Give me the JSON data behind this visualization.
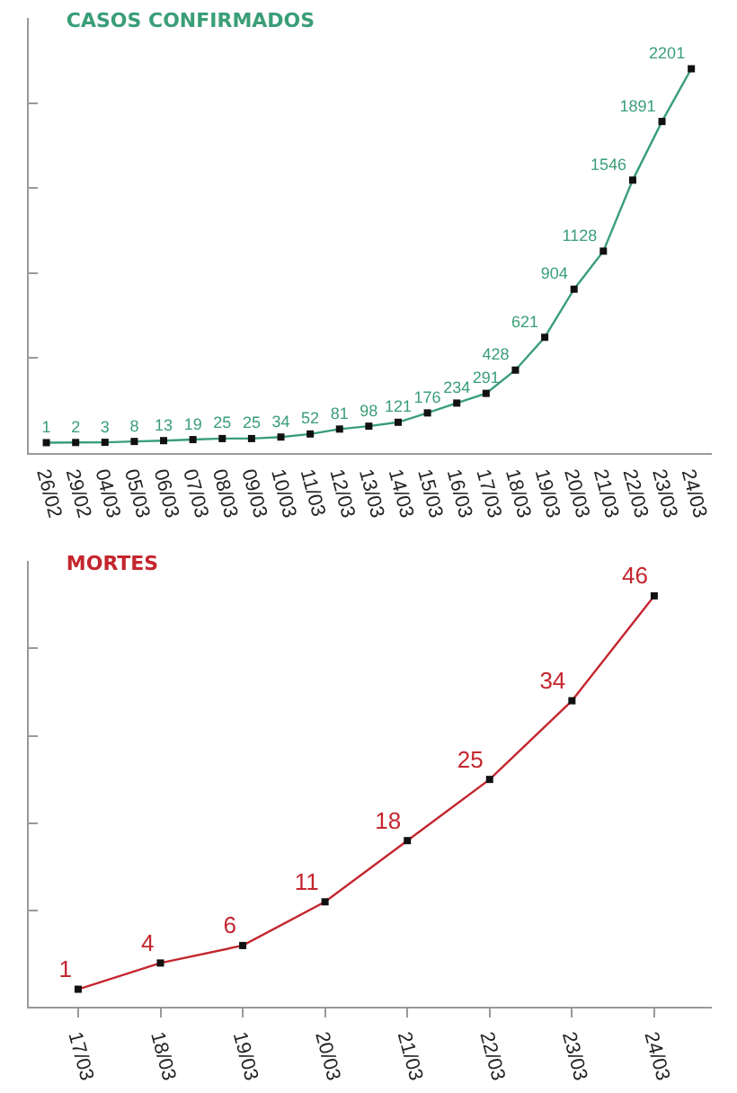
{
  "chart_data": [
    {
      "type": "line",
      "title": "CASOS CONFIRMADOS",
      "categories": [
        "26/02",
        "29/02",
        "04/03",
        "05/03",
        "06/03",
        "07/03",
        "08/03",
        "09/03",
        "10/03",
        "11/03",
        "12/03",
        "13/03",
        "14/03",
        "15/03",
        "16/03",
        "17/03",
        "18/03",
        "19/03",
        "20/03",
        "21/03",
        "22/03",
        "23/03",
        "24/03"
      ],
      "series": [
        {
          "color": "#3a9e78",
          "values": [
            1,
            2,
            3,
            8,
            13,
            19,
            25,
            25,
            34,
            52,
            81,
            98,
            121,
            176,
            234,
            291,
            428,
            621,
            904,
            1128,
            1546,
            1891,
            2201
          ]
        }
      ],
      "ylim": [
        -60,
        2500
      ],
      "yticks": [
        {
          "value": 500,
          "label": null
        },
        {
          "value": 1000,
          "label": null
        },
        {
          "value": 1500,
          "label": null
        },
        {
          "value": 2000,
          "label": null
        }
      ],
      "tick_labels": "x",
      "data_labels": true,
      "marker": "square",
      "grid": false
    },
    {
      "type": "line",
      "title": "MORTES",
      "categories": [
        "17/03",
        "18/03",
        "19/03",
        "20/03",
        "21/03",
        "22/03",
        "23/03",
        "24/03"
      ],
      "series": [
        {
          "color": "#c4262e",
          "values": [
            1,
            4,
            6,
            11,
            18,
            25,
            34,
            46
          ]
        }
      ],
      "ylim": [
        -1,
        50
      ],
      "yticks": [
        {
          "value": 10,
          "label": null
        },
        {
          "value": 20,
          "label": null
        },
        {
          "value": 30,
          "label": null
        },
        {
          "value": 40,
          "label": null
        }
      ],
      "tick_labels": "x",
      "data_labels": true,
      "marker": "square",
      "grid": false
    }
  ]
}
